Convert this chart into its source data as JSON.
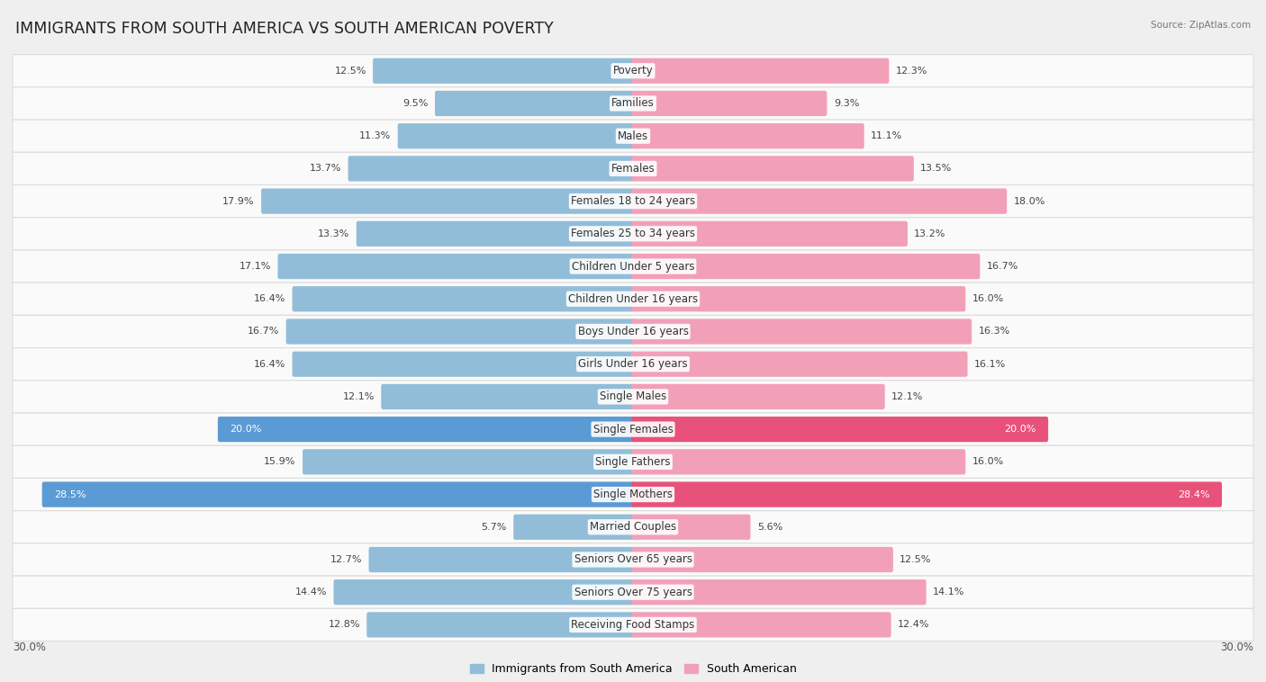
{
  "title": "IMMIGRANTS FROM SOUTH AMERICA VS SOUTH AMERICAN POVERTY",
  "source": "Source: ZipAtlas.com",
  "categories": [
    "Poverty",
    "Families",
    "Males",
    "Females",
    "Females 18 to 24 years",
    "Females 25 to 34 years",
    "Children Under 5 years",
    "Children Under 16 years",
    "Boys Under 16 years",
    "Girls Under 16 years",
    "Single Males",
    "Single Females",
    "Single Fathers",
    "Single Mothers",
    "Married Couples",
    "Seniors Over 65 years",
    "Seniors Over 75 years",
    "Receiving Food Stamps"
  ],
  "left_values": [
    12.5,
    9.5,
    11.3,
    13.7,
    17.9,
    13.3,
    17.1,
    16.4,
    16.7,
    16.4,
    12.1,
    20.0,
    15.9,
    28.5,
    5.7,
    12.7,
    14.4,
    12.8
  ],
  "right_values": [
    12.3,
    9.3,
    11.1,
    13.5,
    18.0,
    13.2,
    16.7,
    16.0,
    16.3,
    16.1,
    12.1,
    20.0,
    16.0,
    28.4,
    5.6,
    12.5,
    14.1,
    12.4
  ],
  "left_color": "#92BDD9",
  "right_color": "#F2A0B8",
  "left_label": "Immigrants from South America",
  "right_label": "South American",
  "bg_color": "#EFEFEF",
  "row_color": "#FAFAFA",
  "x_max": 30.0,
  "title_fontsize": 12.5,
  "cat_fontsize": 8.5,
  "value_fontsize": 8.0,
  "highlight_rows": [
    11,
    13
  ],
  "highlight_left_color": "#5B9BD5",
  "highlight_right_color": "#E8527A"
}
